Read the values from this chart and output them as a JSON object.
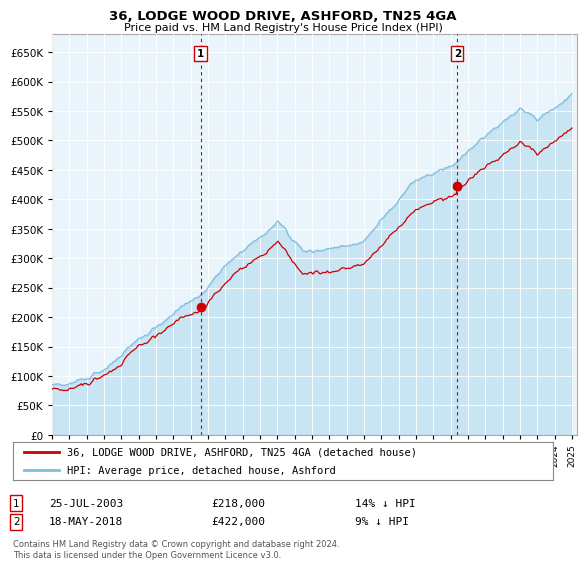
{
  "title": "36, LODGE WOOD DRIVE, ASHFORD, TN25 4GA",
  "subtitle": "Price paid vs. HM Land Registry's House Price Index (HPI)",
  "legend_entry1": "36, LODGE WOOD DRIVE, ASHFORD, TN25 4GA (detached house)",
  "legend_entry2": "HPI: Average price, detached house, Ashford",
  "transaction1_date": "25-JUL-2003",
  "transaction1_price": 218000,
  "transaction1_label": "14% ↓ HPI",
  "transaction2_date": "18-MAY-2018",
  "transaction2_price": 422000,
  "transaction2_label": "9% ↓ HPI",
  "footer": "Contains HM Land Registry data © Crown copyright and database right 2024.\nThis data is licensed under the Open Government Licence v3.0.",
  "hpi_color": "#7fbfdf",
  "price_color": "#cc0000",
  "vline_color": "#cc0000",
  "grid_color": "#cccccc",
  "background_color": "#ffffff",
  "ylim_max": 680000,
  "ytick_step": 50000,
  "start_year": 1995,
  "end_year": 2025,
  "transaction1_year": 2003.57,
  "transaction2_year": 2018.38
}
